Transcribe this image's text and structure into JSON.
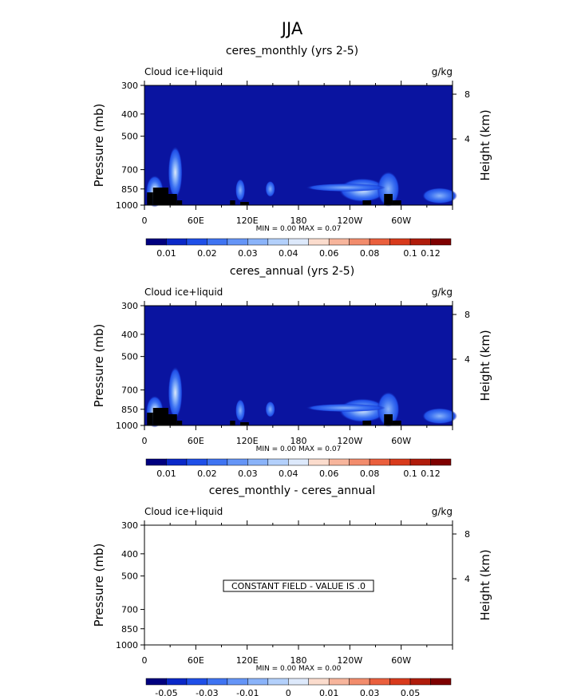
{
  "title": "JJA",
  "colors": {
    "field_background": "#0a14a0",
    "topography": "#000000",
    "colorbar": [
      "#00007f",
      "#0a28c8",
      "#1f4fe8",
      "#3f74f2",
      "#6595f7",
      "#8ab3f9",
      "#b3d0fb",
      "#dde9fb",
      "#fbdccd",
      "#f7b59c",
      "#f28c6c",
      "#ea5f3d",
      "#d83a1c",
      "#b01c0b",
      "#7e0000"
    ]
  },
  "chart_data": [
    {
      "type": "heatmap",
      "title": "ceres_monthly (yrs 2-5)",
      "left_label": "Cloud ice+liquid",
      "right_label": "g/kg",
      "ylabel": "Pressure (mb)",
      "y2label": "Height (km)",
      "yticks": [
        300,
        400,
        500,
        700,
        850,
        1000
      ],
      "y2ticks": [
        8,
        4
      ],
      "xticks": [
        "0",
        "60E",
        "120E",
        "180",
        "120W",
        "60W"
      ],
      "xlim": [
        0,
        360
      ],
      "ylim": [
        1000,
        300
      ],
      "stats": "MIN =     0.00   MAX =     0.07",
      "colorbar_labels": [
        "0.01",
        "0.02",
        "0.03",
        "0.04",
        "0.06",
        "0.08",
        "0.1",
        "0.12"
      ],
      "features": [
        {
          "lon": 12,
          "p": 870,
          "peak": 0.07
        },
        {
          "lon": 36,
          "p": 720,
          "peak": 0.03
        },
        {
          "lon": 112,
          "p": 860,
          "peak": 0.02
        },
        {
          "lon": 147,
          "p": 850,
          "peak": 0.015
        },
        {
          "lon": 255,
          "p": 860,
          "peak": 0.035
        },
        {
          "lon": 285,
          "p": 850,
          "peak": 0.02
        },
        {
          "lon": 345,
          "p": 910,
          "peak": 0.015
        }
      ]
    },
    {
      "type": "heatmap",
      "title": "ceres_annual (yrs 2-5)",
      "left_label": "Cloud ice+liquid",
      "right_label": "g/kg",
      "ylabel": "Pressure (mb)",
      "y2label": "Height (km)",
      "yticks": [
        300,
        400,
        500,
        700,
        850,
        1000
      ],
      "y2ticks": [
        8,
        4
      ],
      "xticks": [
        "0",
        "60E",
        "120E",
        "180",
        "120W",
        "60W"
      ],
      "xlim": [
        0,
        360
      ],
      "ylim": [
        1000,
        300
      ],
      "stats": "MIN =     0.00   MAX =     0.07",
      "colorbar_labels": [
        "0.01",
        "0.02",
        "0.03",
        "0.04",
        "0.06",
        "0.08",
        "0.1",
        "0.12"
      ],
      "features": [
        {
          "lon": 12,
          "p": 870,
          "peak": 0.07
        },
        {
          "lon": 36,
          "p": 720,
          "peak": 0.03
        },
        {
          "lon": 112,
          "p": 860,
          "peak": 0.02
        },
        {
          "lon": 147,
          "p": 850,
          "peak": 0.015
        },
        {
          "lon": 255,
          "p": 860,
          "peak": 0.035
        },
        {
          "lon": 285,
          "p": 850,
          "peak": 0.02
        },
        {
          "lon": 345,
          "p": 910,
          "peak": 0.015
        }
      ]
    },
    {
      "type": "heatmap",
      "title": "ceres_monthly - ceres_annual",
      "left_label": "Cloud ice+liquid",
      "right_label": "g/kg",
      "ylabel": "Pressure (mb)",
      "y2label": "Height (km)",
      "yticks": [
        300,
        400,
        500,
        700,
        850,
        1000
      ],
      "y2ticks": [
        8,
        4
      ],
      "xticks": [
        "0",
        "60E",
        "120E",
        "180",
        "120W",
        "60W"
      ],
      "xlim": [
        0,
        360
      ],
      "ylim": [
        1000,
        300
      ],
      "stats": "MIN =     0.00   MAX =     0.00",
      "constant_field_text": "CONSTANT FIELD - VALUE IS .0",
      "colorbar_labels": [
        "-0.05",
        "-0.03",
        "-0.01",
        "0",
        "0.01",
        "0.03",
        "0.05"
      ]
    }
  ]
}
